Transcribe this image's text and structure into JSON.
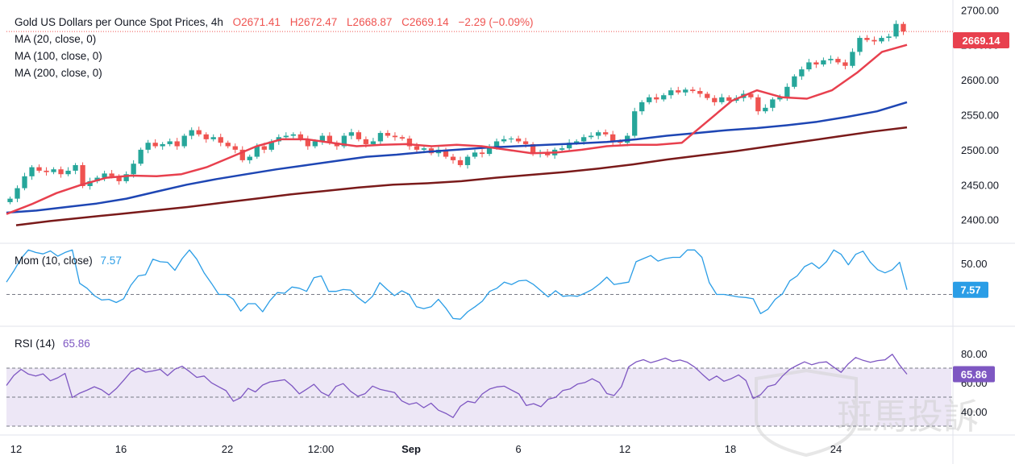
{
  "header": {
    "title": "Gold US Dollars per Ounce Spot Prices, 4h",
    "ohlc": {
      "o": "O2671.41",
      "h": "H2672.47",
      "l": "L2668.87",
      "c": "C2669.14",
      "chg": "−2.29 (−0.09%)"
    },
    "ma_labels": [
      "MA (20, close, 0)",
      "MA (100, close, 0)",
      "MA (200, close, 0)"
    ]
  },
  "colors": {
    "up": "#26a69a",
    "down": "#ef5350",
    "ma20": "#e8404e",
    "ma100": "#1e46b4",
    "ma200": "#7a1a1a",
    "mom": "#2a9de6",
    "rsi": "#7e57c2",
    "rsi_band": "#ede7f6",
    "tag_price": "#e8404e",
    "tag_mom": "#2a9de6",
    "tag_rsi": "#7e57c2"
  },
  "price_tag": "2669.14",
  "mom_label": {
    "name": "Mom (10, close)",
    "value": "7.57"
  },
  "rsi_label": {
    "name": "RSI (14)",
    "value": "65.86"
  },
  "mom_tag": "7.57",
  "rsi_tag": "65.86",
  "watermark": "斑馬投訴",
  "chart_data": [
    {
      "type": "candlestick",
      "title": "Gold US Dollars per Ounce Spot Prices, 4h",
      "ylim": [
        2380,
        2705
      ],
      "yticks": [
        "2700.00",
        "2650.00",
        "2600.00",
        "2550.00",
        "2500.00",
        "2450.00",
        "2400.00"
      ],
      "yticks_values": [
        2700,
        2650,
        2600,
        2550,
        2500,
        2450,
        2400
      ],
      "x_labels": [
        "12",
        "16",
        "22",
        "12:00",
        "Sep",
        "6",
        "12",
        "18",
        "24"
      ],
      "closes_estimated": [
        2430,
        2445,
        2462,
        2475,
        2470,
        2468,
        2472,
        2465,
        2470,
        2478,
        2448,
        2455,
        2460,
        2466,
        2462,
        2455,
        2465,
        2480,
        2500,
        2510,
        2505,
        2508,
        2512,
        2505,
        2520,
        2528,
        2522,
        2515,
        2518,
        2510,
        2505,
        2500,
        2485,
        2490,
        2505,
        2500,
        2512,
        2518,
        2520,
        2522,
        2515,
        2505,
        2512,
        2520,
        2510,
        2505,
        2520,
        2525,
        2515,
        2508,
        2512,
        2524,
        2520,
        2518,
        2516,
        2505,
        2500,
        2502,
        2495,
        2500,
        2490,
        2485,
        2478,
        2490,
        2496,
        2494,
        2505,
        2512,
        2515,
        2516,
        2512,
        2508,
        2494,
        2496,
        2492,
        2500,
        2502,
        2510,
        2512,
        2518,
        2520,
        2525,
        2522,
        2512,
        2510,
        2520,
        2555,
        2568,
        2575,
        2572,
        2578,
        2585,
        2582,
        2586,
        2584,
        2580,
        2574,
        2568,
        2575,
        2570,
        2574,
        2580,
        2575,
        2555,
        2560,
        2572,
        2575,
        2590,
        2605,
        2615,
        2625,
        2622,
        2628,
        2630,
        2625,
        2620,
        2640,
        2660,
        2657,
        2655,
        2660,
        2662,
        2680,
        2669.14
      ],
      "ma20_estimated": [
        2408,
        2422,
        2438,
        2450,
        2460,
        2463,
        2462,
        2465,
        2475,
        2490,
        2505,
        2515,
        2515,
        2510,
        2505,
        2507,
        2508,
        2505,
        2507,
        2505,
        2500,
        2495,
        2496,
        2500,
        2505,
        2507,
        2507,
        2510,
        2540,
        2570,
        2585,
        2575,
        2573,
        2585,
        2610,
        2640,
        2650
      ],
      "ma100_estimated": [
        2410,
        2413,
        2418,
        2423,
        2430,
        2440,
        2450,
        2458,
        2465,
        2472,
        2478,
        2484,
        2490,
        2493,
        2497,
        2500,
        2503,
        2505,
        2507,
        2509,
        2511,
        2515,
        2520,
        2524,
        2528,
        2531,
        2535,
        2540,
        2547,
        2555,
        2568
      ],
      "ma200_estimated": [
        2392,
        2398,
        2403,
        2408,
        2413,
        2418,
        2424,
        2430,
        2436,
        2441,
        2446,
        2450,
        2452,
        2455,
        2460,
        2464,
        2468,
        2473,
        2479,
        2486,
        2492,
        2498,
        2505,
        2512,
        2519,
        2526,
        2532
      ]
    },
    {
      "type": "line",
      "title": "Mom (10, close)",
      "ylim": [
        -45,
        75
      ],
      "yticks": [
        "50.00"
      ],
      "yticks_values": [
        50
      ],
      "dashed_level": 0,
      "last": 7.57
    },
    {
      "type": "line",
      "title": "RSI (14)",
      "ylim": [
        25,
        95
      ],
      "yticks": [
        "80.00",
        "60.00",
        "40.00"
      ],
      "yticks_values": [
        80,
        60,
        40
      ],
      "band": [
        30,
        70
      ],
      "dashed_levels": [
        70,
        50,
        30
      ],
      "last": 65.86
    }
  ]
}
